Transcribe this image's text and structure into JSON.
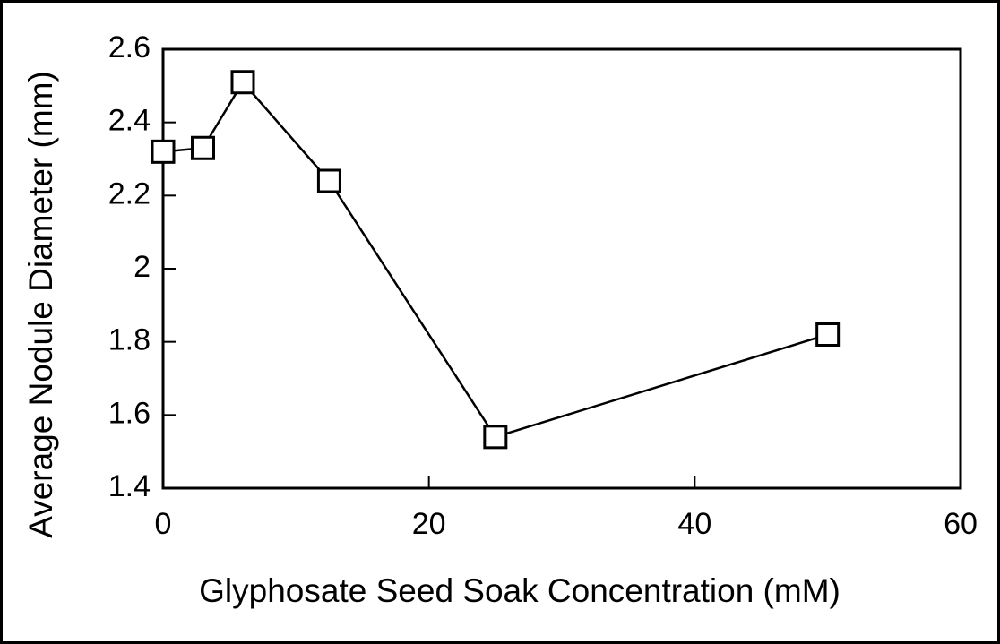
{
  "chart_data": {
    "type": "line",
    "x_label": "Glyphosate Seed Soak Concentration (mM)",
    "y_label": "Average Nodule Diameter (mm)",
    "x": [
      0,
      3,
      6,
      12.5,
      25,
      50
    ],
    "values": [
      2.32,
      2.33,
      2.51,
      2.24,
      1.54,
      1.82
    ],
    "color": "#000000",
    "marker": "square",
    "xlim": [
      0,
      60
    ],
    "xticks": [
      0,
      20,
      40,
      60
    ],
    "ylim": [
      1.4,
      2.6
    ],
    "yticks": [
      1.4,
      1.6,
      1.8,
      2,
      2.2,
      2.4,
      2.6
    ],
    "grid": false
  }
}
